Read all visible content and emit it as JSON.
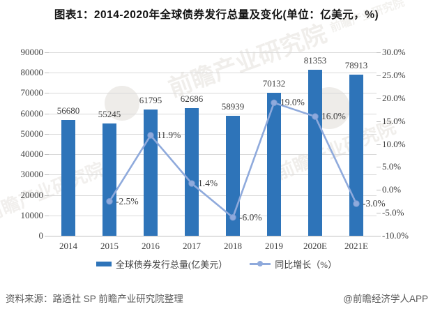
{
  "chart_data": {
    "type": "combo-bar-line",
    "title": "图表1：2014-2020年全球债券发行总量及变化(单位：亿美元，%)",
    "categories": [
      "2014",
      "2015",
      "2016",
      "2017",
      "2018",
      "2019",
      "2020E",
      "2021E"
    ],
    "series": [
      {
        "name": "全球债券发行总量(亿美元）",
        "chart_type": "bar",
        "axis": "left",
        "color": "#2E74B9",
        "values": [
          56680,
          55245,
          61795,
          62686,
          58939,
          70132,
          81353,
          78913
        ],
        "labels": [
          "56680",
          "55245",
          "61795",
          "62686",
          "58939",
          "70132",
          "81353",
          "78913"
        ]
      },
      {
        "name": "同比增长（%）",
        "chart_type": "line",
        "axis": "right",
        "color": "#8FAADC",
        "values": [
          null,
          -2.5,
          11.9,
          1.4,
          -6.0,
          19.0,
          16.0,
          -3.0
        ],
        "labels": [
          null,
          "-2.5%",
          "11.9%",
          "1.4%",
          "-6.0%",
          "19.0%",
          "16.0%",
          "-3.0%"
        ]
      }
    ],
    "left_axis": {
      "min": 0,
      "max": 90000,
      "step": 10000,
      "tick_labels": [
        "0",
        "10000",
        "20000",
        "30000",
        "40000",
        "50000",
        "60000",
        "70000",
        "80000",
        "90000"
      ]
    },
    "right_axis": {
      "min": -10,
      "max": 30,
      "step": 5,
      "tick_labels": [
        "-10.0%",
        "-5.0%",
        "0.0%",
        "5.0%",
        "10.0%",
        "15.0%",
        "20.0%",
        "25.0%",
        "30.0%"
      ]
    },
    "grid": true,
    "legend_position": "bottom"
  },
  "footer": {
    "source": "资料来源：路透社 SP 前瞻产业研究院整理",
    "brand": "@前瞻经济学人APP"
  },
  "watermark": {
    "text": "前瞻产业研究院"
  },
  "colors": {
    "bar": "#2E74B9",
    "line": "#8FAADC",
    "grid": "#D9D9D9",
    "axis_line": "#BFBFBF",
    "text": "#3F3F3F",
    "footer_text": "#595959",
    "watermark": "#CFC8BF"
  }
}
